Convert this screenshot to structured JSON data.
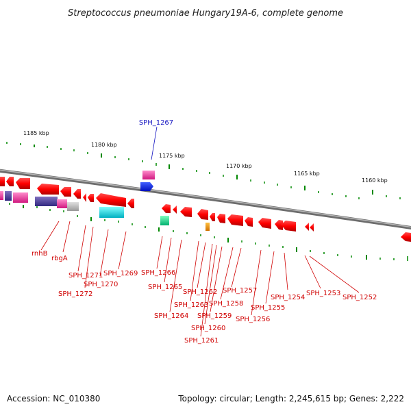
{
  "header": {
    "title": "Streptococcus pneumoniae Hungary19A-6, complete genome"
  },
  "scale": {
    "ticks": [
      "1185 kbp",
      "1180 kbp",
      "1175 kbp",
      "1170 kbp",
      "1165 kbp",
      "1160 kbp"
    ]
  },
  "genes": {
    "blue_label": "SPH_1267",
    "red_labels": [
      "rnhB",
      "rbgA",
      "SPH_1271",
      "SPH_1272",
      "SPH_1270",
      "SPH_1269",
      "SPH_1266",
      "SPH_1265",
      "SPH_1264",
      "SPH_1263",
      "SPH_1262",
      "SPH_1261",
      "SPH_1260",
      "SPH_1259",
      "SPH_1258",
      "SPH_1257",
      "SPH_1256",
      "SPH_1255",
      "SPH_1254",
      "SPH_1253",
      "SPH_1252"
    ]
  },
  "colors": {
    "gene": "#ff0000",
    "backbone": "#888888",
    "tick": "#008800",
    "label_red": "#d00000",
    "label_blue": "#1010c0"
  },
  "footer": {
    "accession": "Accession: NC_010380",
    "summary": "Topology: circular; Length: 2,245,615 bp; Genes: 2,222"
  }
}
